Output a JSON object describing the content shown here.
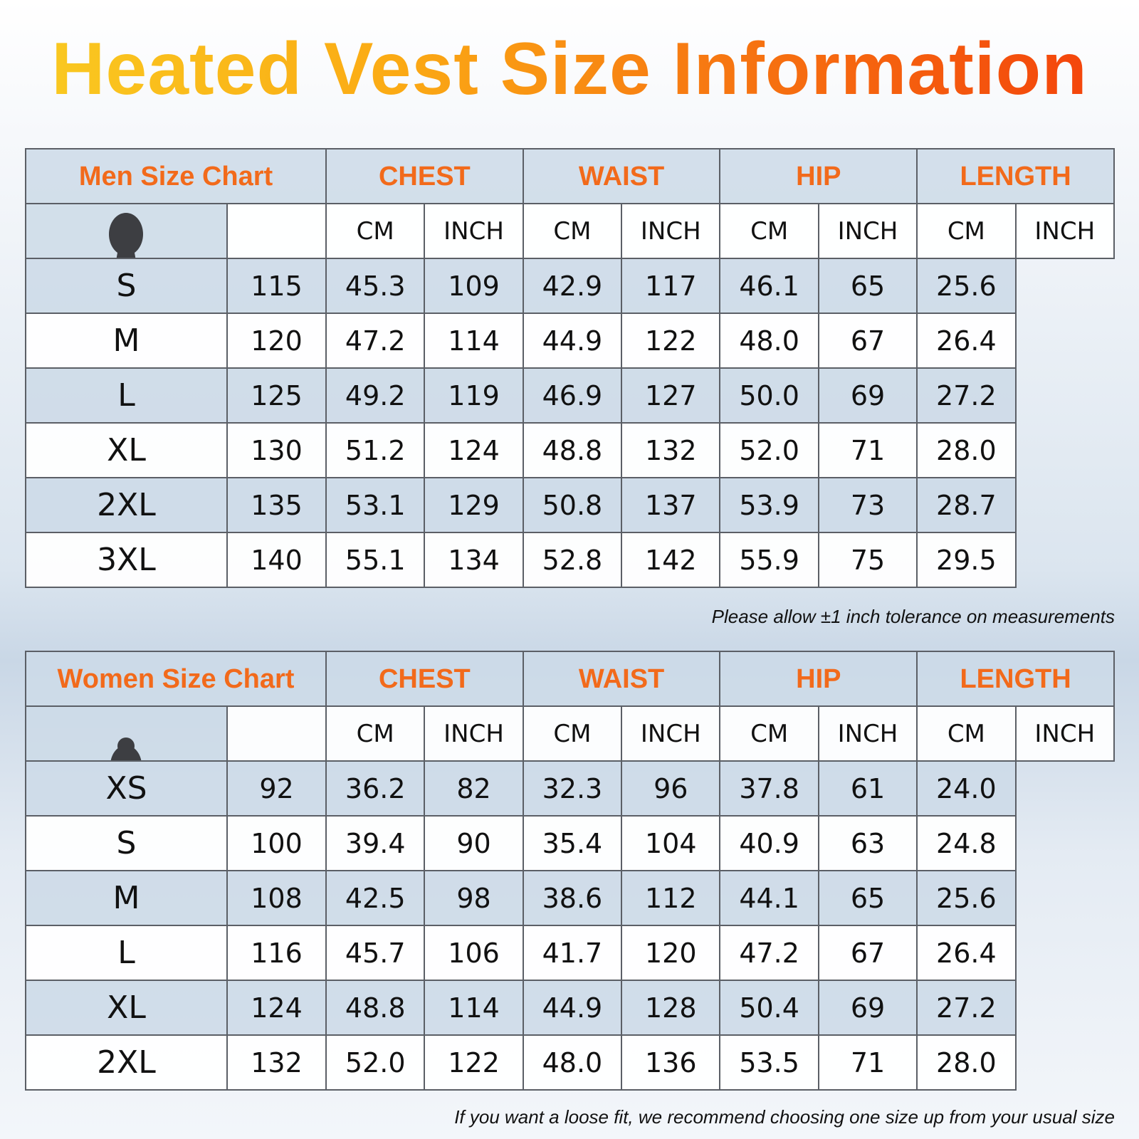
{
  "title": "Heated Vest Size Information",
  "columns": {
    "chest": "CHEST",
    "waist": "WAIST",
    "hip": "HIP",
    "length": "LENGTH",
    "cm": "CM",
    "inch": "INCH"
  },
  "figure_labels": {
    "chest": "CHEST",
    "waist": "WAIST",
    "hip": "HIP",
    "length": "LENGTH"
  },
  "men": {
    "label": "Men Size Chart",
    "rows": [
      [
        "S",
        "115",
        "45.3",
        "109",
        "42.9",
        "117",
        "46.1",
        "65",
        "25.6"
      ],
      [
        "M",
        "120",
        "47.2",
        "114",
        "44.9",
        "122",
        "48.0",
        "67",
        "26.4"
      ],
      [
        "L",
        "125",
        "49.2",
        "119",
        "46.9",
        "127",
        "50.0",
        "69",
        "27.2"
      ],
      [
        "XL",
        "130",
        "51.2",
        "124",
        "48.8",
        "132",
        "52.0",
        "71",
        "28.0"
      ],
      [
        "2XL",
        "135",
        "53.1",
        "129",
        "50.8",
        "137",
        "53.9",
        "73",
        "28.7"
      ],
      [
        "3XL",
        "140",
        "55.1",
        "134",
        "52.8",
        "142",
        "55.9",
        "75",
        "29.5"
      ]
    ]
  },
  "note1": "Please allow ±1 inch tolerance on measurements",
  "women": {
    "label": "Women Size Chart",
    "rows": [
      [
        "XS",
        "92",
        "36.2",
        "82",
        "32.3",
        "96",
        "37.8",
        "61",
        "24.0"
      ],
      [
        "S",
        "100",
        "39.4",
        "90",
        "35.4",
        "104",
        "40.9",
        "63",
        "24.8"
      ],
      [
        "M",
        "108",
        "42.5",
        "98",
        "38.6",
        "112",
        "44.1",
        "65",
        "25.6"
      ],
      [
        "L",
        "116",
        "45.7",
        "106",
        "41.7",
        "120",
        "47.2",
        "67",
        "26.4"
      ],
      [
        "XL",
        "124",
        "48.8",
        "114",
        "44.9",
        "128",
        "50.4",
        "69",
        "27.2"
      ],
      [
        "2XL",
        "132",
        "52.0",
        "122",
        "48.0",
        "136",
        "53.5",
        "71",
        "28.0"
      ]
    ]
  },
  "note2": "If you want a loose fit, we recommend choosing one size up from your usual size",
  "colors": {
    "accent": "#f26a1b",
    "title_gradient": [
      "#f9cc22",
      "#f33f0b"
    ],
    "silhouette": "#3d3e42"
  }
}
